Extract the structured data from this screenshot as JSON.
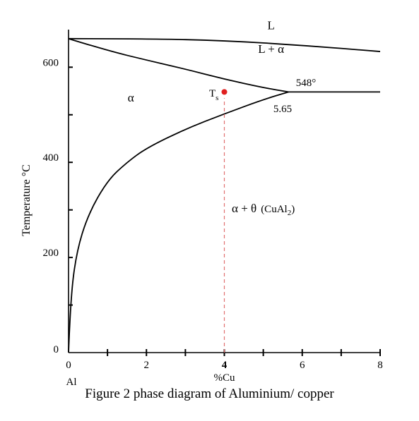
{
  "chart_data": {
    "type": "phase-diagram",
    "title": "Figure 2 phase diagram of Aluminium/ copper",
    "xlabel": "%Cu",
    "ylabel": "Temperature °C",
    "xlim": [
      0,
      8
    ],
    "ylim": [
      0,
      660
    ],
    "x_ticks": [
      "0",
      "2",
      "4",
      "6",
      "8"
    ],
    "x_minor_ticks": [
      1,
      3,
      5,
      7
    ],
    "y_ticks": [
      "0",
      "200",
      "400",
      "600"
    ],
    "y_minor_ticks": [
      100,
      300,
      500
    ],
    "x_origin_label": "Al",
    "curves": {
      "liquidus": [
        [
          0,
          660
        ],
        [
          2,
          660
        ],
        [
          4,
          656
        ],
        [
          6,
          646
        ],
        [
          8,
          633
        ]
      ],
      "solidus": [
        [
          0,
          660
        ],
        [
          1,
          635
        ],
        [
          2,
          615
        ],
        [
          3,
          596
        ],
        [
          4,
          575
        ],
        [
          5,
          557
        ],
        [
          5.65,
          548
        ]
      ],
      "solvus": [
        [
          0,
          0
        ],
        [
          0.05,
          110
        ],
        [
          0.2,
          210
        ],
        [
          0.5,
          290
        ],
        [
          1,
          362
        ],
        [
          1.5,
          400
        ],
        [
          2,
          430
        ],
        [
          3,
          470
        ],
        [
          4,
          502
        ],
        [
          5,
          532
        ],
        [
          5.65,
          548
        ]
      ],
      "eutectic": [
        [
          5.65,
          548
        ],
        [
          8,
          548
        ]
      ]
    },
    "regions": [
      {
        "label": "L",
        "x": 5.2,
        "y": 680
      },
      {
        "label": "L + α",
        "x": 5.2,
        "y": 630
      },
      {
        "label": "α",
        "x": 1.6,
        "y": 528
      },
      {
        "label": "α + θ",
        "x": 5.0,
        "y": 295
      }
    ],
    "region_sub": {
      "text": "(CuAl",
      "sub": "2",
      "close": ")"
    },
    "annotations": {
      "eutectic_temp": "548°",
      "eutectic_comp": "5.65",
      "ts_label": "T",
      "ts_sub": "s"
    },
    "point": {
      "x": 4,
      "y": 548,
      "color": "#e02020"
    },
    "dashed_line": {
      "x": 4,
      "y0": 0,
      "y1": 535,
      "color": "#e07070"
    }
  }
}
